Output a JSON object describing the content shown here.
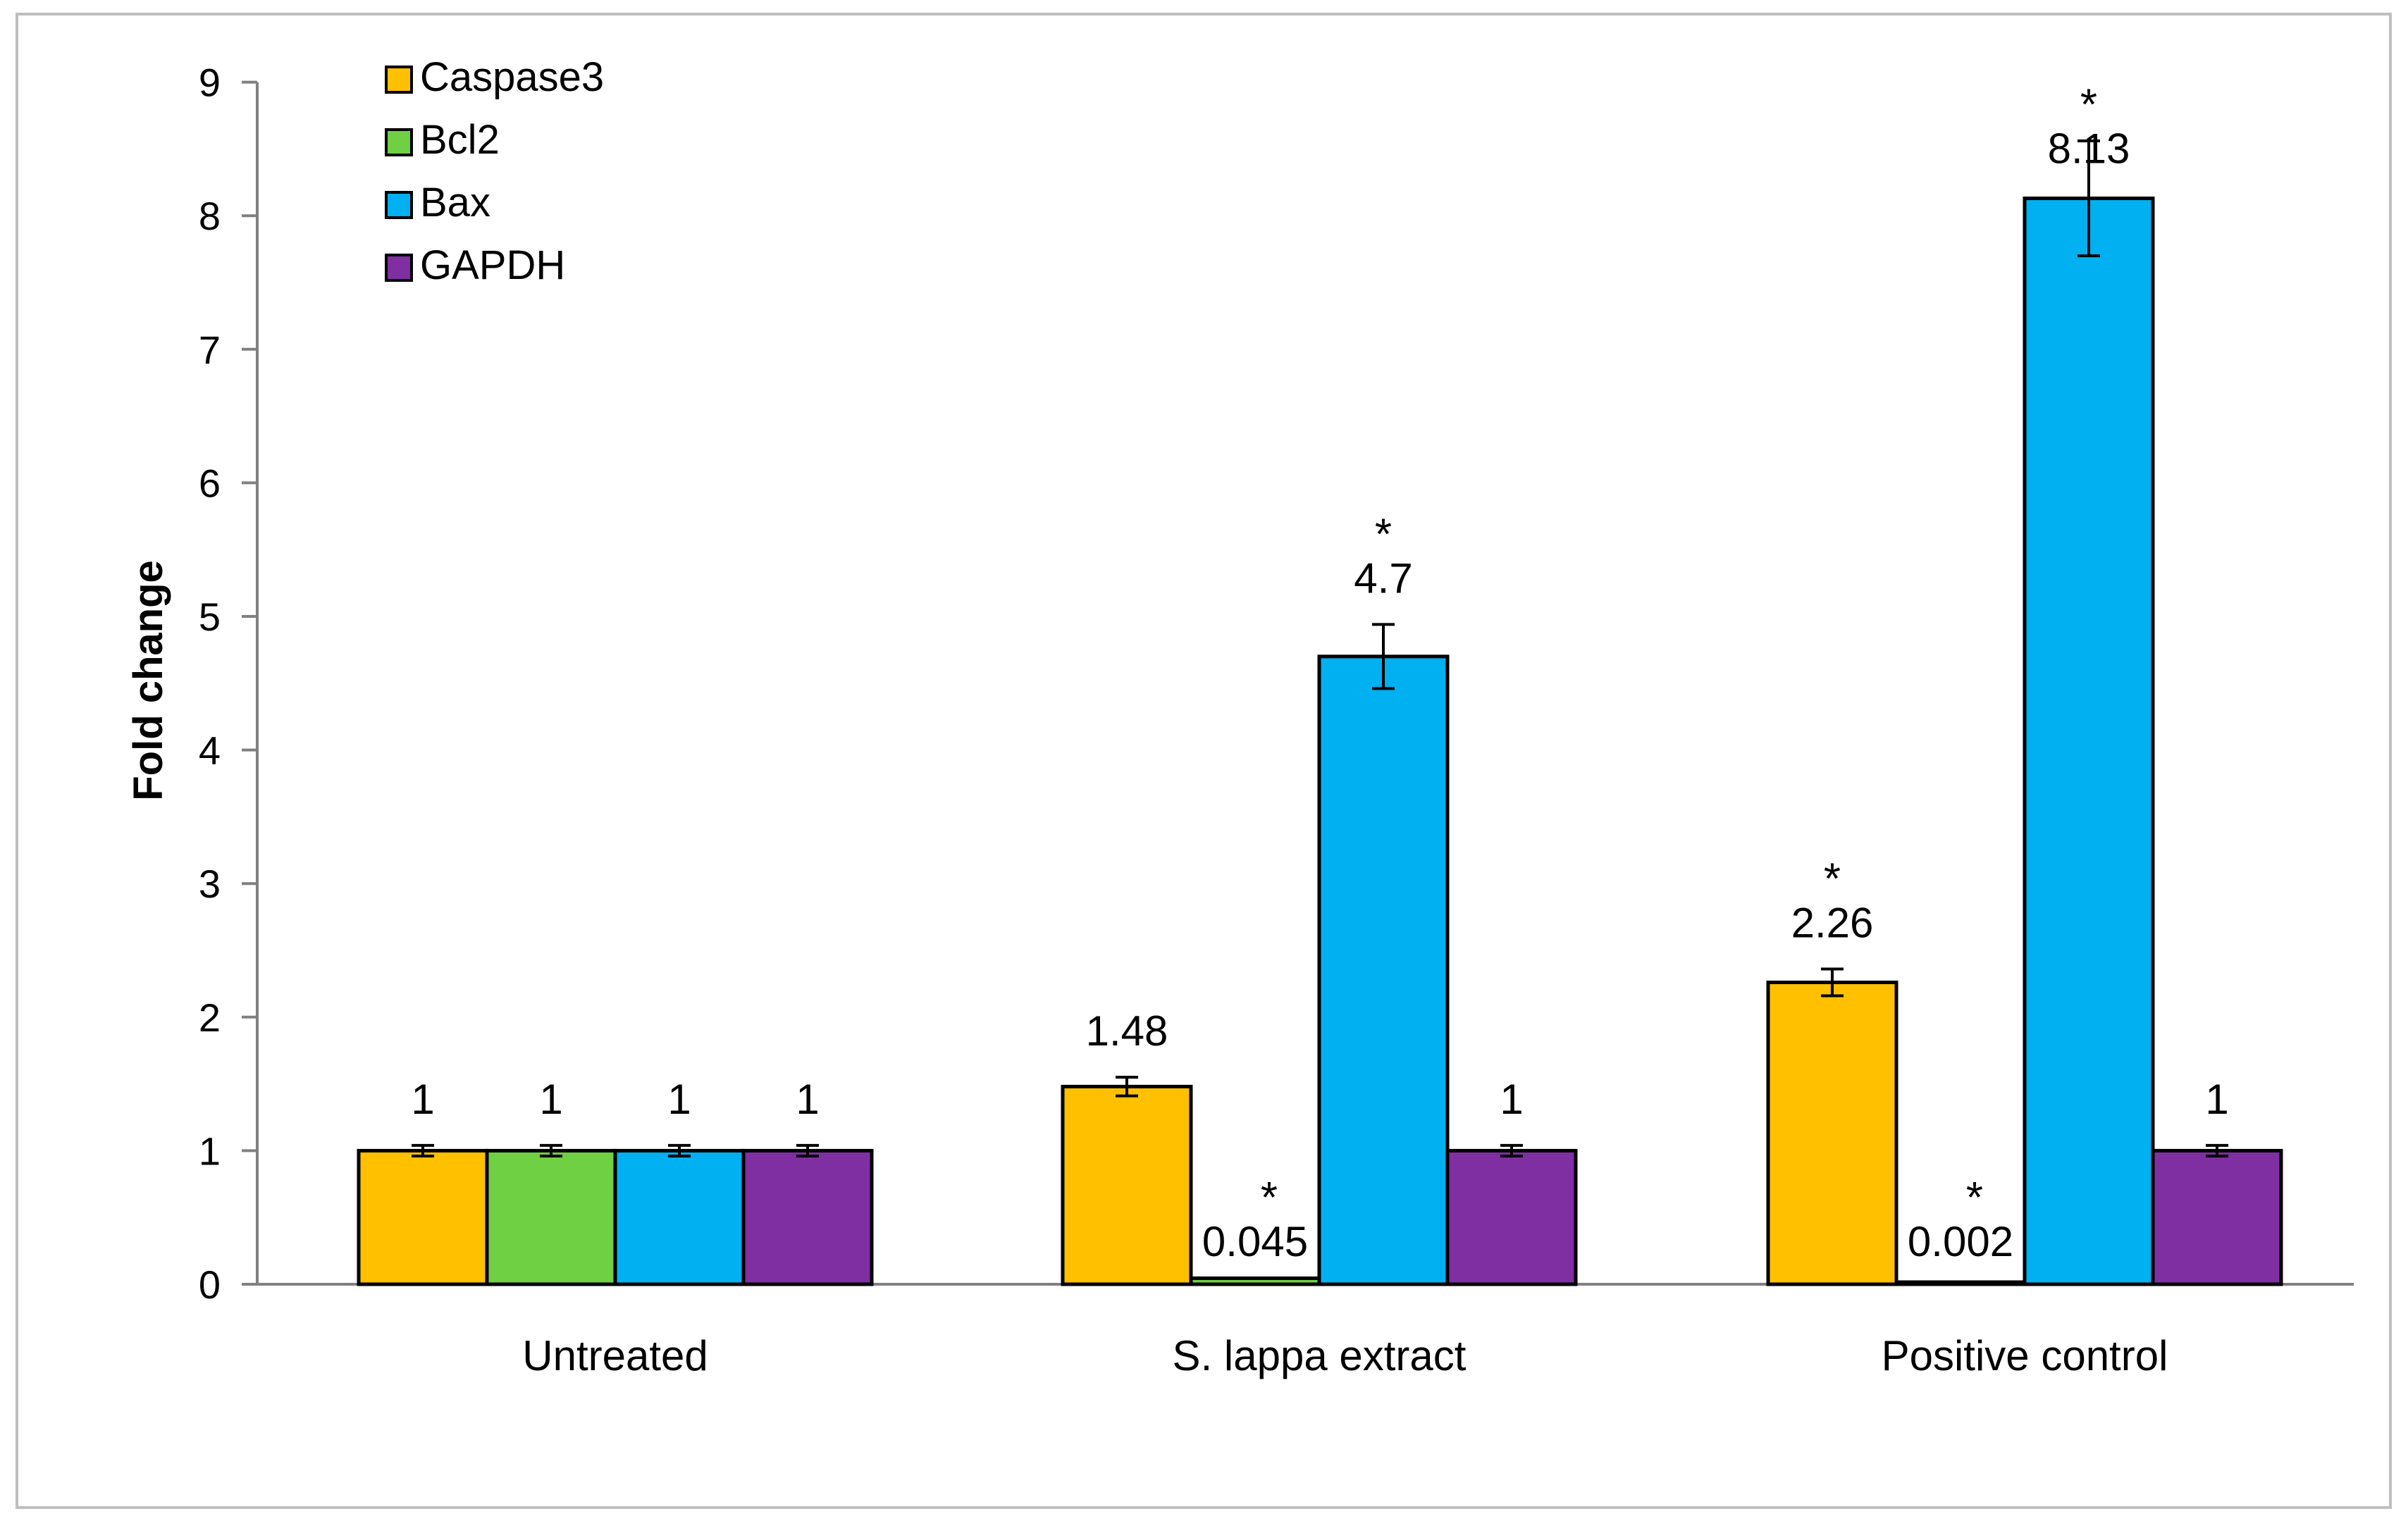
{
  "chart_data": {
    "type": "bar",
    "title": "",
    "xlabel": "",
    "ylabel": "Fold  change",
    "ylim": [
      0,
      9
    ],
    "yticks": [
      "0",
      "1",
      "2",
      "3",
      "4",
      "5",
      "6",
      "7",
      "8",
      "9"
    ],
    "grid": false,
    "legend_position": "top-left",
    "categories": [
      "Untreated",
      "S. lappa extract",
      "Positive control"
    ],
    "series": [
      {
        "name": "Caspase3",
        "color": "#FFC000",
        "values": [
          1,
          1.48,
          2.26
        ],
        "errors": [
          0.04,
          0.07,
          0.1
        ],
        "labels": [
          "1",
          "1.48",
          "2.26"
        ],
        "significant": [
          false,
          false,
          true
        ]
      },
      {
        "name": "Bcl2",
        "color": "#70D044",
        "values": [
          1,
          0.045,
          0.002
        ],
        "errors": [
          0.04,
          0,
          0
        ],
        "labels": [
          "1",
          "0.045",
          "0.002"
        ],
        "significant": [
          false,
          true,
          true
        ]
      },
      {
        "name": "Bax",
        "color": "#00B0F0",
        "values": [
          1,
          4.7,
          8.13
        ],
        "errors": [
          0.04,
          0.24,
          0.43
        ],
        "labels": [
          "1",
          "4.7",
          "8.13"
        ],
        "significant": [
          false,
          true,
          true
        ]
      },
      {
        "name": "GAPDH",
        "color": "#7F2FA1",
        "values": [
          1,
          1,
          1
        ],
        "errors": [
          0.04,
          0.04,
          0.04
        ],
        "labels": [
          "1",
          "1",
          "1"
        ],
        "significant": [
          false,
          false,
          false
        ]
      }
    ],
    "significance_marker": "*"
  }
}
